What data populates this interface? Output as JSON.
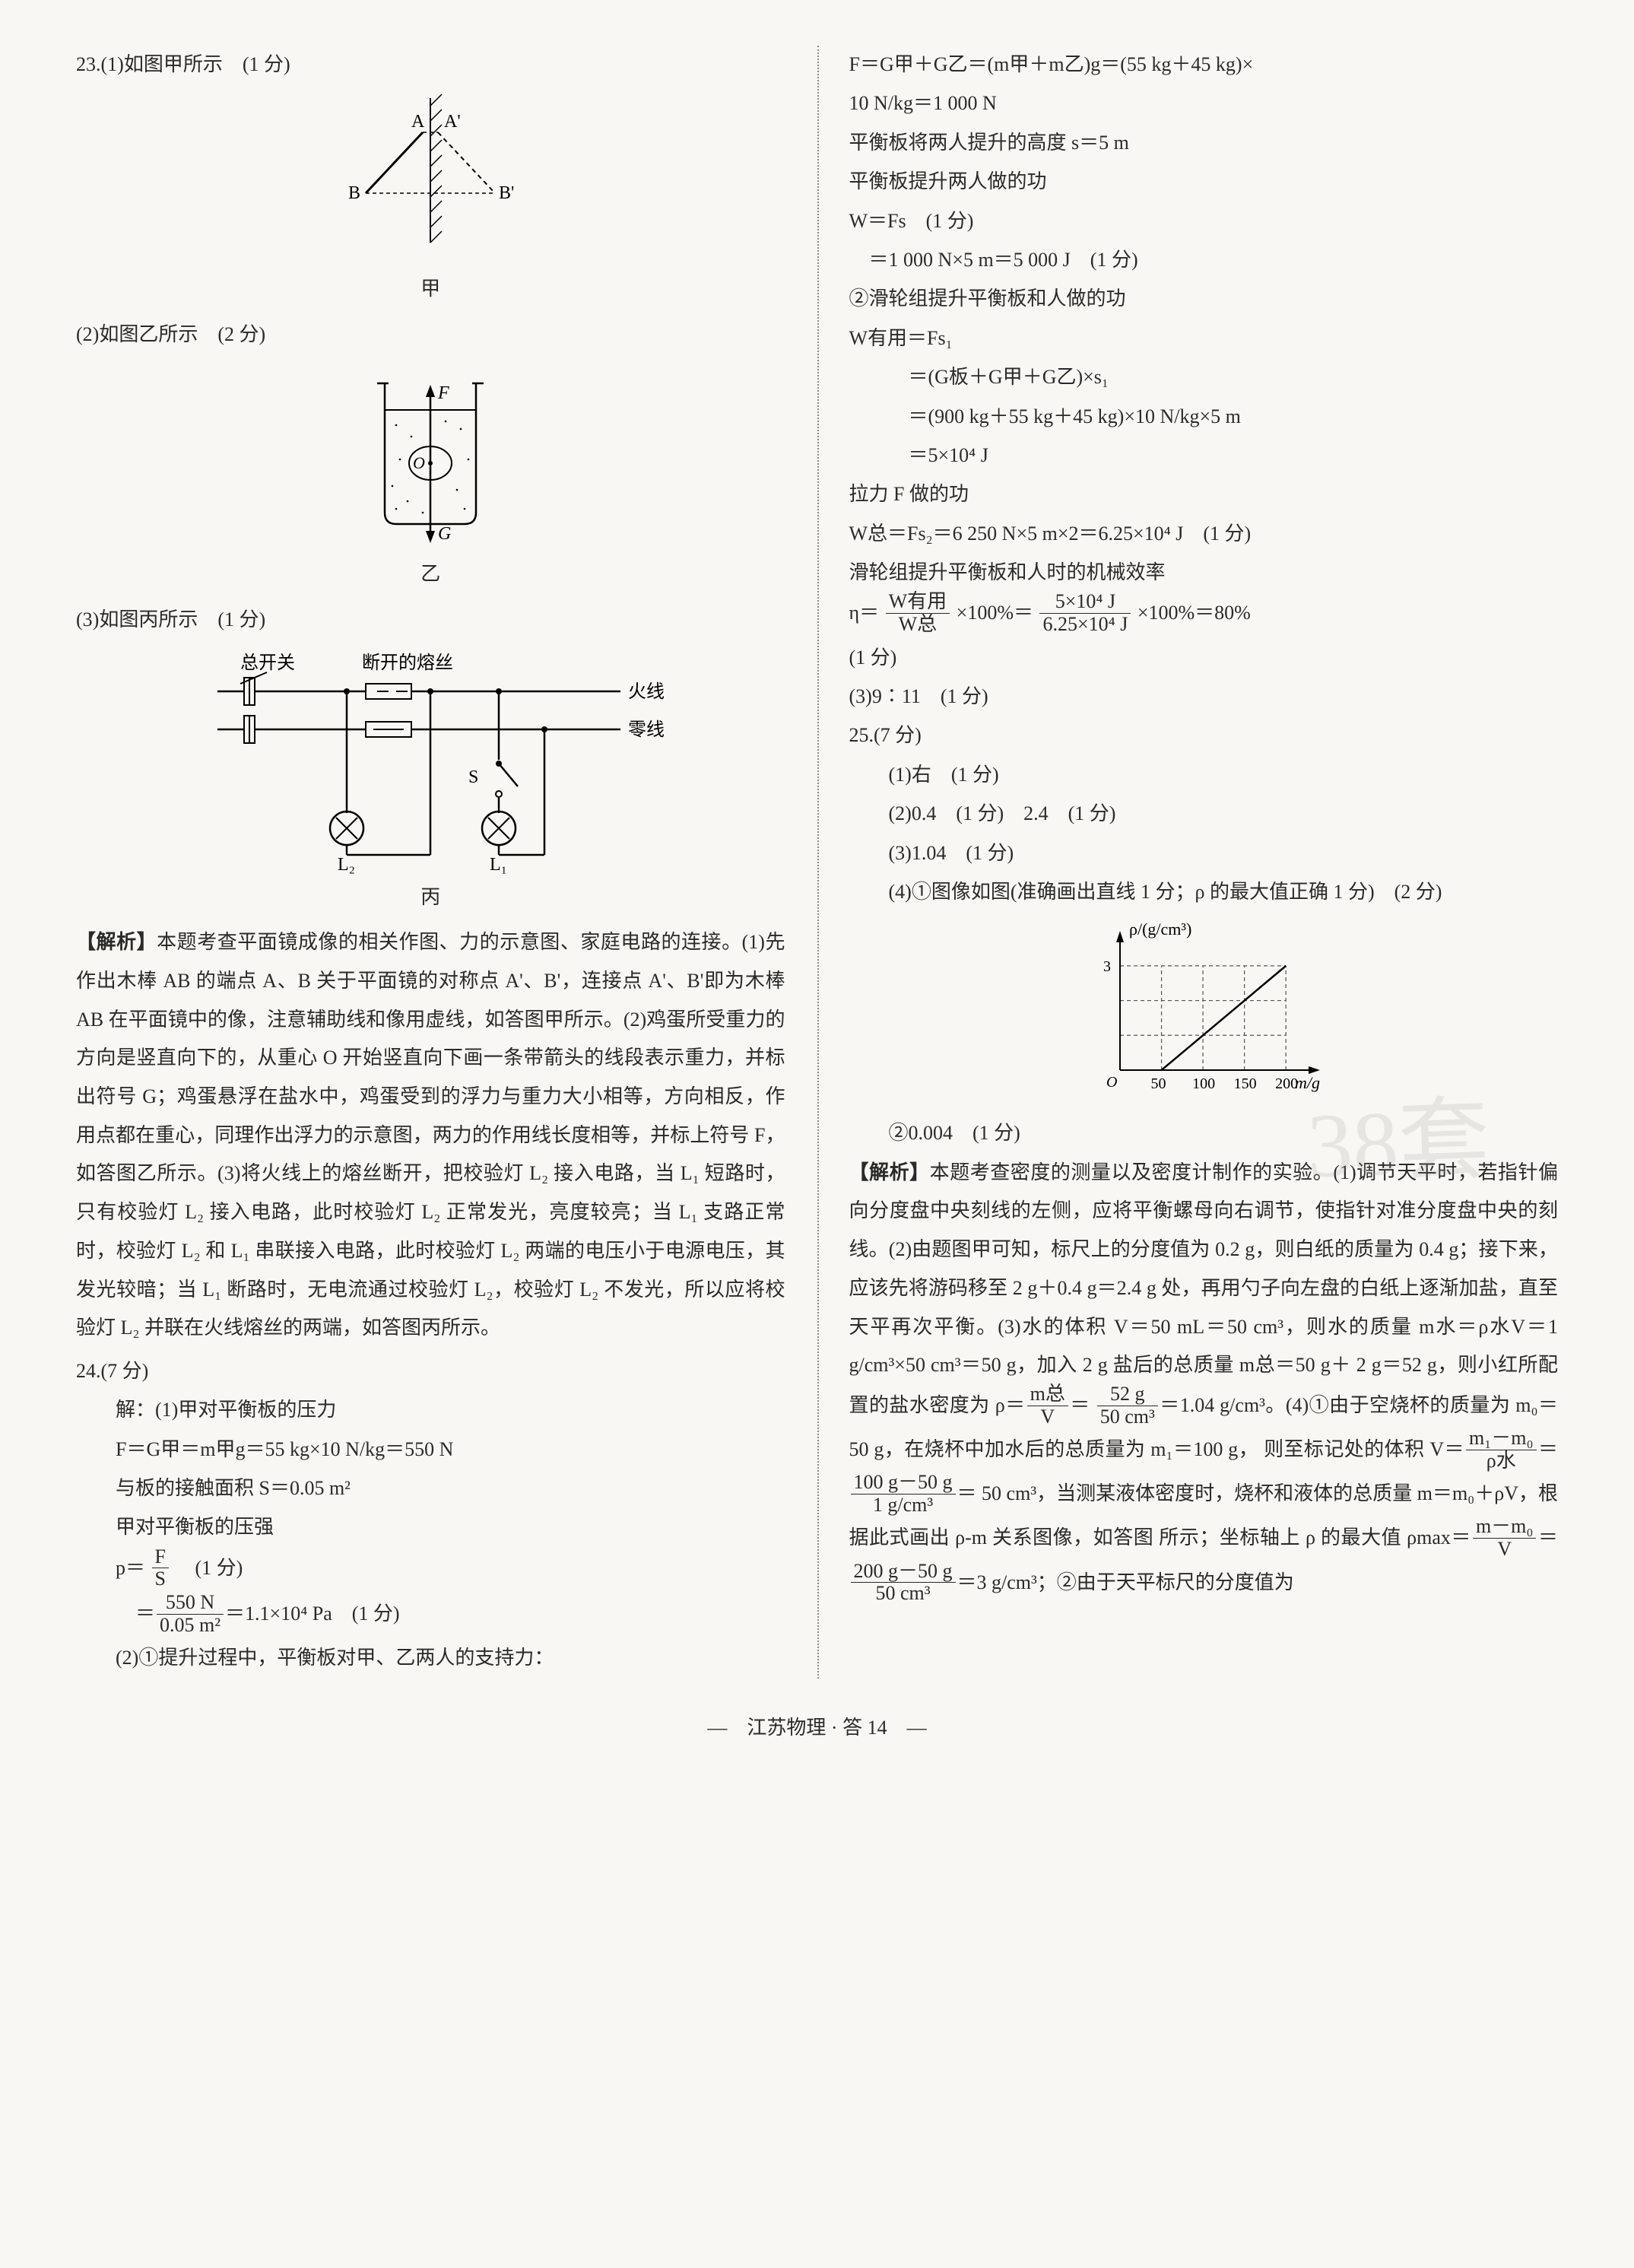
{
  "q23": {
    "num": "23.",
    "p1": "(1)如图甲所示　(1 分)",
    "p2": "(2)如图乙所示　(2 分)",
    "p3": "(3)如图丙所示　(1 分)",
    "fig1_labels": {
      "A": "A",
      "Ap": "A'",
      "B": "B",
      "Bp": "B'",
      "cap": "甲"
    },
    "fig2_labels": {
      "F": "F",
      "O": "O",
      "G": "G",
      "cap": "乙"
    },
    "fig3_labels": {
      "main_switch": "总开关",
      "fuse": "断开的熔丝",
      "live": "火线",
      "neutral": "零线",
      "S": "S",
      "L1": "L₁",
      "L2": "L₂",
      "cap": "丙"
    },
    "analysis_head": "【解析】",
    "analysis": "本题考查平面镜成像的相关作图、力的示意图、家庭电路的连接。(1)先作出木棒 AB 的端点 A、B 关于平面镜的对称点 A'、B'，连接点 A'、B'即为木棒 AB 在平面镜中的像，注意辅助线和像用虚线，如答图甲所示。(2)鸡蛋所受重力的方向是竖直向下的，从重心 O 开始竖直向下画一条带箭头的线段表示重力，并标出符号 G；鸡蛋悬浮在盐水中，鸡蛋受到的浮力与重力大小相等，方向相反，作用点都在重心，同理作出浮力的示意图，两力的作用线长度相等，并标上符号 F，如答图乙所示。(3)将火线上的熔丝断开，把校验灯 L₂ 接入电路，当 L₁ 短路时，只有校验灯 L₂ 接入电路，此时校验灯 L₂ 正常发光，亮度较亮；当 L₁ 支路正常时，校验灯 L₂ 和 L₁ 串联接入电路，此时校验灯 L₂ 两端的电压小于电源电压，其发光较暗；当 L₁ 断路时，无电流通过校验灯 L₂，校验灯 L₂ 不发光，所以应将校验灯 L₂ 并联在火线熔丝的两端，如答图丙所示。"
  },
  "q24": {
    "num": "24.",
    "points": "(7 分)",
    "lines": [
      "解：(1)甲对平衡板的压力",
      "F＝G甲＝m甲g＝55 kg×10 N/kg＝550 N",
      "与板的接触面积 S＝0.05 m²",
      "甲对平衡板的压强"
    ],
    "p_formula": {
      "lhs": "p＝",
      "num": "F",
      "den": "S",
      "score": "(1 分)"
    },
    "p_value": {
      "num": "550 N",
      "den": "0.05 m²",
      "rhs": "＝1.1×10⁴ Pa　(1 分)"
    },
    "l2_1": "(2)①提升过程中，平衡板对甲、乙两人的支持力：",
    "r_lines": [
      "F＝G甲＋G乙＝(m甲＋m乙)g＝(55 kg＋45 kg)×",
      "10 N/kg＝1 000 N",
      "平衡板将两人提升的高度 s＝5 m",
      "平衡板提升两人做的功",
      "W＝Fs　(1 分)",
      "　＝1 000 N×5 m＝5 000 J　(1 分)",
      "②滑轮组提升平衡板和人做的功",
      "W有用＝Fs₁",
      "　　　＝(G板＋G甲＋G乙)×s₁",
      "　　　＝(900 kg＋55 kg＋45 kg)×10 N/kg×5 m",
      "　　　＝5×10⁴ J",
      "拉力 F 做的功",
      "W总＝Fs₂＝6 250 N×5 m×2＝6.25×10⁴ J　(1 分)",
      "滑轮组提升平衡板和人时的机械效率"
    ],
    "eta": {
      "lhs": "η＝",
      "num1": "W有用",
      "den1": "W总",
      "mid": "×100%＝",
      "num2": "5×10⁴ J",
      "den2": "6.25×10⁴ J",
      "rhs": "×100%＝80%"
    },
    "eta_score": "(1 分)",
    "l3": "(3)9∶11　(1 分)"
  },
  "q25": {
    "num": "25.",
    "points": "(7 分)",
    "l1": "(1)右　(1 分)",
    "l2": "(2)0.4　(1 分)　2.4　(1 分)",
    "l3": "(3)1.04　(1 分)",
    "l4": "(4)①图像如图(准确画出直线 1 分；ρ 的最大值正确 1 分)　(2 分)",
    "chart": {
      "ylabel": "ρ/(g/cm³)",
      "xlabel": "m/g",
      "ytick": "3",
      "xticks": [
        "50",
        "100",
        "150",
        "200"
      ],
      "xlim": [
        0,
        220
      ],
      "ylim": [
        0,
        3.5
      ],
      "line_x": [
        50,
        200
      ],
      "line_y": [
        0,
        3
      ],
      "grid_color": "#555",
      "line_color": "#000",
      "line_width": 2
    },
    "l5": "②0.004　(1 分)",
    "analysis_head": "【解析】",
    "analysis_a": "本题考查密度的测量以及密度计制作的实验。(1)调节天平时，若指针偏向分度盘中央刻线的左侧，应将平衡螺母向右调节，使指针对准分度盘中央的刻线。(2)由题图甲可知，标尺上的分度值为 0.2 g，则白纸的质量为 0.4 g；接下来，应该先将游码移至 2 g＋0.4 g＝2.4 g 处，再用勺子向左盘的白纸上逐渐加盐，直至天平再次平衡。(3)水的体积 V＝50 mL＝50 cm³，则水的质量 m水＝ρ水V＝1 g/cm³×50 cm³＝50 g，加入 2 g 盐后的总质量 m总＝50 g＋",
    "rho_salt": {
      "pre": "2 g＝52 g，则小红所配置的盐水密度为 ρ＝",
      "num": "m总",
      "den": "V",
      "eq": "＝"
    },
    "rho_salt2": {
      "num": "52 g",
      "den": "50 cm³",
      "rhs": "＝1.04 g/cm³。(4)①由于空烧杯的质量为"
    },
    "analysis_b": "m₀＝50 g，在烧杯中加水后的总质量为 m₁＝100 g，",
    "vol": {
      "pre": "则至标记处的体积 V＝",
      "num1": "m₁－m₀",
      "den1": "ρ水",
      "mid": "＝",
      "num2": "100 g－50 g",
      "den2": "1 g/cm³",
      "rhs": "＝"
    },
    "analysis_c": "50 cm³，当测某液体密度时，烧杯和液体的总质量 m＝m₀＋ρV，根据此式画出 ρ-m 关系图像，如答图",
    "rhomax": {
      "pre": "所示；坐标轴上 ρ 的最大值 ρmax＝",
      "num": "m－m₀",
      "den": "V",
      "rhs": "＝"
    },
    "rhomax2": {
      "num": "200 g－50 g",
      "den": "50 cm³",
      "rhs": "＝3 g/cm³；②由于天平标尺的分度值为"
    }
  },
  "footer": "—　江苏物理 · 答 14　—",
  "watermark": "38套"
}
